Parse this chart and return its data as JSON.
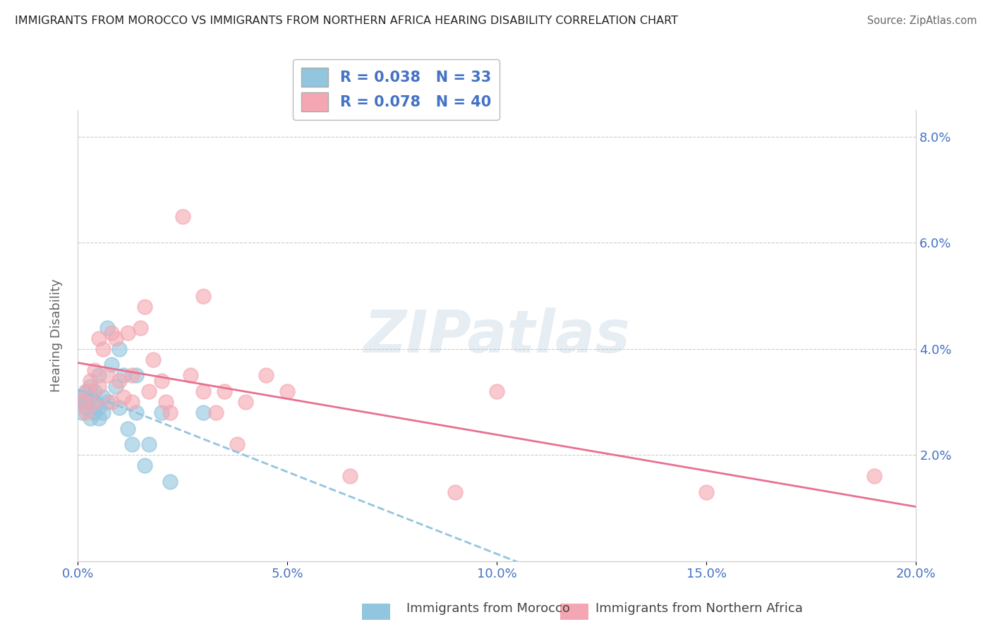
{
  "title": "IMMIGRANTS FROM MOROCCO VS IMMIGRANTS FROM NORTHERN AFRICA HEARING DISABILITY CORRELATION CHART",
  "source": "Source: ZipAtlas.com",
  "ylabel_label": "Hearing Disability",
  "xlim": [
    0.0,
    0.2
  ],
  "ylim": [
    0.0,
    0.085
  ],
  "x_ticks": [
    0.0,
    0.05,
    0.1,
    0.15,
    0.2
  ],
  "x_tick_labels": [
    "0.0%",
    "5.0%",
    "10.0%",
    "15.0%",
    "20.0%"
  ],
  "y_ticks": [
    0.0,
    0.02,
    0.04,
    0.06,
    0.08
  ],
  "y_tick_labels": [
    "",
    "2.0%",
    "4.0%",
    "6.0%",
    "8.0%"
  ],
  "legend_label1": "R = 0.038   N = 33",
  "legend_label2": "R = 0.078   N = 40",
  "color_blue": "#92C5DE",
  "color_pink": "#F4A7B2",
  "blue_scatter": [
    [
      0.001,
      0.03
    ],
    [
      0.001,
      0.031
    ],
    [
      0.001,
      0.028
    ],
    [
      0.002,
      0.032
    ],
    [
      0.002,
      0.03
    ],
    [
      0.002,
      0.029
    ],
    [
      0.003,
      0.033
    ],
    [
      0.003,
      0.031
    ],
    [
      0.003,
      0.027
    ],
    [
      0.004,
      0.032
    ],
    [
      0.004,
      0.03
    ],
    [
      0.004,
      0.028
    ],
    [
      0.005,
      0.035
    ],
    [
      0.005,
      0.029
    ],
    [
      0.005,
      0.027
    ],
    [
      0.006,
      0.031
    ],
    [
      0.006,
      0.028
    ],
    [
      0.007,
      0.044
    ],
    [
      0.007,
      0.03
    ],
    [
      0.008,
      0.037
    ],
    [
      0.009,
      0.033
    ],
    [
      0.01,
      0.04
    ],
    [
      0.01,
      0.029
    ],
    [
      0.011,
      0.035
    ],
    [
      0.012,
      0.025
    ],
    [
      0.013,
      0.022
    ],
    [
      0.014,
      0.035
    ],
    [
      0.014,
      0.028
    ],
    [
      0.016,
      0.018
    ],
    [
      0.017,
      0.022
    ],
    [
      0.02,
      0.028
    ],
    [
      0.022,
      0.015
    ],
    [
      0.03,
      0.028
    ]
  ],
  "pink_scatter": [
    [
      0.001,
      0.03
    ],
    [
      0.002,
      0.032
    ],
    [
      0.002,
      0.028
    ],
    [
      0.003,
      0.034
    ],
    [
      0.004,
      0.036
    ],
    [
      0.004,
      0.03
    ],
    [
      0.005,
      0.042
    ],
    [
      0.005,
      0.033
    ],
    [
      0.006,
      0.04
    ],
    [
      0.007,
      0.035
    ],
    [
      0.008,
      0.043
    ],
    [
      0.008,
      0.03
    ],
    [
      0.009,
      0.042
    ],
    [
      0.01,
      0.034
    ],
    [
      0.011,
      0.031
    ],
    [
      0.012,
      0.043
    ],
    [
      0.013,
      0.035
    ],
    [
      0.013,
      0.03
    ],
    [
      0.015,
      0.044
    ],
    [
      0.016,
      0.048
    ],
    [
      0.017,
      0.032
    ],
    [
      0.018,
      0.038
    ],
    [
      0.02,
      0.034
    ],
    [
      0.021,
      0.03
    ],
    [
      0.022,
      0.028
    ],
    [
      0.025,
      0.065
    ],
    [
      0.027,
      0.035
    ],
    [
      0.03,
      0.032
    ],
    [
      0.03,
      0.05
    ],
    [
      0.033,
      0.028
    ],
    [
      0.035,
      0.032
    ],
    [
      0.038,
      0.022
    ],
    [
      0.04,
      0.03
    ],
    [
      0.045,
      0.035
    ],
    [
      0.05,
      0.032
    ],
    [
      0.065,
      0.016
    ],
    [
      0.09,
      0.013
    ],
    [
      0.1,
      0.032
    ],
    [
      0.15,
      0.013
    ],
    [
      0.19,
      0.016
    ]
  ],
  "watermark_text": "ZIPatlas",
  "background_color": "#ffffff",
  "grid_color": "#cccccc",
  "tick_color": "#4472c4",
  "legend1_series": "Immigrants from Morocco",
  "legend2_series": "Immigrants from Northern Africa"
}
